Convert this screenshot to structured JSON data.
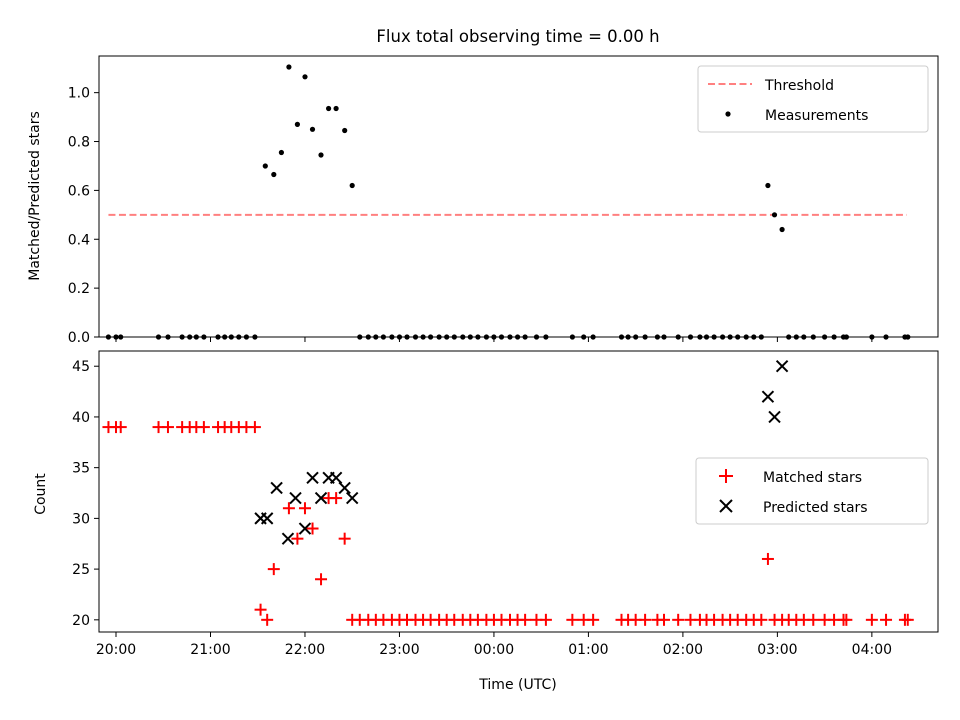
{
  "chart_data": [
    {
      "type": "scatter",
      "title": "Flux total observing time = 0.00 h",
      "xlabel": "",
      "ylabel": "Matched/Predicted stars",
      "ylim": [
        0,
        1.15
      ],
      "xlim": [
        19.82,
        28.7
      ],
      "yticks": [
        0.0,
        0.2,
        0.4,
        0.6,
        0.8,
        1.0
      ],
      "ytick_labels": [
        "0.0",
        "0.2",
        "0.4",
        "0.6",
        "0.8",
        "1.0"
      ],
      "legend_position": "top-right",
      "legend": [
        "Threshold",
        "Measurements"
      ],
      "threshold": {
        "value": 0.5,
        "x_start": 19.92,
        "x_end": 28.37,
        "color": "#ff8080"
      },
      "measurements": [
        [
          19.92,
          0
        ],
        [
          20.0,
          0
        ],
        [
          20.05,
          0
        ],
        [
          20.45,
          0
        ],
        [
          20.55,
          0
        ],
        [
          20.7,
          0
        ],
        [
          20.78,
          0
        ],
        [
          20.85,
          0
        ],
        [
          20.93,
          0
        ],
        [
          21.08,
          0
        ],
        [
          21.15,
          0
        ],
        [
          21.22,
          0
        ],
        [
          21.3,
          0
        ],
        [
          21.38,
          0
        ],
        [
          21.47,
          0
        ],
        [
          21.58,
          0.7
        ],
        [
          21.67,
          0.665
        ],
        [
          21.75,
          0.755
        ],
        [
          21.83,
          1.105
        ],
        [
          21.92,
          0.87
        ],
        [
          22.0,
          1.065
        ],
        [
          22.08,
          0.85
        ],
        [
          22.17,
          0.745
        ],
        [
          22.25,
          0.935
        ],
        [
          22.33,
          0.935
        ],
        [
          22.42,
          0.845
        ],
        [
          22.5,
          0.62
        ],
        [
          22.58,
          0
        ],
        [
          22.67,
          0
        ],
        [
          22.75,
          0
        ],
        [
          22.83,
          0
        ],
        [
          22.92,
          0
        ],
        [
          23.0,
          0
        ],
        [
          23.08,
          0
        ],
        [
          23.17,
          0
        ],
        [
          23.25,
          0
        ],
        [
          23.33,
          0
        ],
        [
          23.42,
          0
        ],
        [
          23.5,
          0
        ],
        [
          23.58,
          0
        ],
        [
          23.67,
          0
        ],
        [
          23.75,
          0
        ],
        [
          23.83,
          0
        ],
        [
          23.92,
          0
        ],
        [
          24.0,
          0
        ],
        [
          24.08,
          0
        ],
        [
          24.17,
          0
        ],
        [
          24.25,
          0
        ],
        [
          24.33,
          0
        ],
        [
          24.45,
          0
        ],
        [
          24.55,
          0
        ],
        [
          24.83,
          0
        ],
        [
          24.95,
          0
        ],
        [
          25.05,
          0
        ],
        [
          25.35,
          0
        ],
        [
          25.42,
          0
        ],
        [
          25.5,
          0
        ],
        [
          25.6,
          0
        ],
        [
          25.73,
          0
        ],
        [
          25.8,
          0
        ],
        [
          25.95,
          0
        ],
        [
          26.08,
          0
        ],
        [
          26.18,
          0
        ],
        [
          26.25,
          0
        ],
        [
          26.33,
          0
        ],
        [
          26.42,
          0
        ],
        [
          26.5,
          0
        ],
        [
          26.58,
          0
        ],
        [
          26.67,
          0
        ],
        [
          26.75,
          0
        ],
        [
          26.83,
          0
        ],
        [
          26.9,
          0.62
        ],
        [
          26.97,
          0.5
        ],
        [
          27.05,
          0.44
        ],
        [
          27.12,
          0
        ],
        [
          27.2,
          0
        ],
        [
          27.28,
          0
        ],
        [
          27.38,
          0
        ],
        [
          27.5,
          0
        ],
        [
          27.6,
          0
        ],
        [
          27.7,
          0
        ],
        [
          27.73,
          0
        ],
        [
          28.0,
          0
        ],
        [
          28.15,
          0
        ],
        [
          28.35,
          0
        ],
        [
          28.38,
          0
        ]
      ]
    },
    {
      "type": "scatter",
      "xlabel": "Time (UTC)",
      "ylabel": "Count",
      "ylim": [
        18.8,
        46.5
      ],
      "xlim": [
        19.82,
        28.7
      ],
      "yticks": [
        20,
        25,
        30,
        35,
        40,
        45
      ],
      "ytick_labels": [
        "20",
        "25",
        "30",
        "35",
        "40",
        "45"
      ],
      "xticks": [
        20,
        21,
        22,
        23,
        24,
        25,
        26,
        27,
        28
      ],
      "xtick_labels": [
        "20:00",
        "21:00",
        "22:00",
        "23:00",
        "00:00",
        "01:00",
        "02:00",
        "03:00",
        "04:00"
      ],
      "legend_position": "center-right",
      "legend": [
        "Matched stars",
        "Predicted stars"
      ],
      "series": [
        {
          "name": "Matched stars",
          "color": "#ff0000",
          "marker": "plus",
          "points": [
            [
              19.92,
              39
            ],
            [
              20.0,
              39
            ],
            [
              20.05,
              39
            ],
            [
              20.45,
              39
            ],
            [
              20.55,
              39
            ],
            [
              20.7,
              39
            ],
            [
              20.78,
              39
            ],
            [
              20.85,
              39
            ],
            [
              20.93,
              39
            ],
            [
              21.08,
              39
            ],
            [
              21.15,
              39
            ],
            [
              21.22,
              39
            ],
            [
              21.3,
              39
            ],
            [
              21.38,
              39
            ],
            [
              21.47,
              39
            ],
            [
              21.53,
              21
            ],
            [
              21.6,
              20
            ],
            [
              21.67,
              25
            ],
            [
              21.83,
              31
            ],
            [
              21.92,
              28
            ],
            [
              22.0,
              31
            ],
            [
              22.08,
              29
            ],
            [
              22.17,
              24
            ],
            [
              22.25,
              32
            ],
            [
              22.33,
              32
            ],
            [
              22.42,
              28
            ],
            [
              22.5,
              20
            ],
            [
              22.58,
              20
            ],
            [
              22.67,
              20
            ],
            [
              22.75,
              20
            ],
            [
              22.83,
              20
            ],
            [
              22.92,
              20
            ],
            [
              23.0,
              20
            ],
            [
              23.08,
              20
            ],
            [
              23.17,
              20
            ],
            [
              23.25,
              20
            ],
            [
              23.33,
              20
            ],
            [
              23.42,
              20
            ],
            [
              23.5,
              20
            ],
            [
              23.58,
              20
            ],
            [
              23.67,
              20
            ],
            [
              23.75,
              20
            ],
            [
              23.83,
              20
            ],
            [
              23.92,
              20
            ],
            [
              24.0,
              20
            ],
            [
              24.08,
              20
            ],
            [
              24.17,
              20
            ],
            [
              24.25,
              20
            ],
            [
              24.33,
              20
            ],
            [
              24.45,
              20
            ],
            [
              24.55,
              20
            ],
            [
              24.83,
              20
            ],
            [
              24.95,
              20
            ],
            [
              25.05,
              20
            ],
            [
              25.35,
              20
            ],
            [
              25.42,
              20
            ],
            [
              25.5,
              20
            ],
            [
              25.6,
              20
            ],
            [
              25.73,
              20
            ],
            [
              25.8,
              20
            ],
            [
              25.95,
              20
            ],
            [
              26.08,
              20
            ],
            [
              26.18,
              20
            ],
            [
              26.25,
              20
            ],
            [
              26.33,
              20
            ],
            [
              26.42,
              20
            ],
            [
              26.5,
              20
            ],
            [
              26.58,
              20
            ],
            [
              26.67,
              20
            ],
            [
              26.75,
              20
            ],
            [
              26.83,
              20
            ],
            [
              26.9,
              26
            ],
            [
              26.97,
              20
            ],
            [
              27.05,
              20
            ],
            [
              27.12,
              20
            ],
            [
              27.2,
              20
            ],
            [
              27.28,
              20
            ],
            [
              27.38,
              20
            ],
            [
              27.5,
              20
            ],
            [
              27.6,
              20
            ],
            [
              27.7,
              20
            ],
            [
              27.73,
              20
            ],
            [
              28.0,
              20
            ],
            [
              28.15,
              20
            ],
            [
              28.35,
              20
            ],
            [
              28.38,
              20
            ]
          ]
        },
        {
          "name": "Predicted stars",
          "color": "#000000",
          "marker": "x",
          "points": [
            [
              21.53,
              30
            ],
            [
              21.6,
              30
            ],
            [
              21.7,
              33
            ],
            [
              21.82,
              28
            ],
            [
              21.9,
              32
            ],
            [
              22.0,
              29
            ],
            [
              22.08,
              34
            ],
            [
              22.17,
              32
            ],
            [
              22.25,
              34
            ],
            [
              22.33,
              34
            ],
            [
              22.42,
              33
            ],
            [
              22.5,
              32
            ],
            [
              26.9,
              42
            ],
            [
              26.97,
              40
            ],
            [
              27.05,
              45
            ]
          ]
        }
      ]
    }
  ]
}
